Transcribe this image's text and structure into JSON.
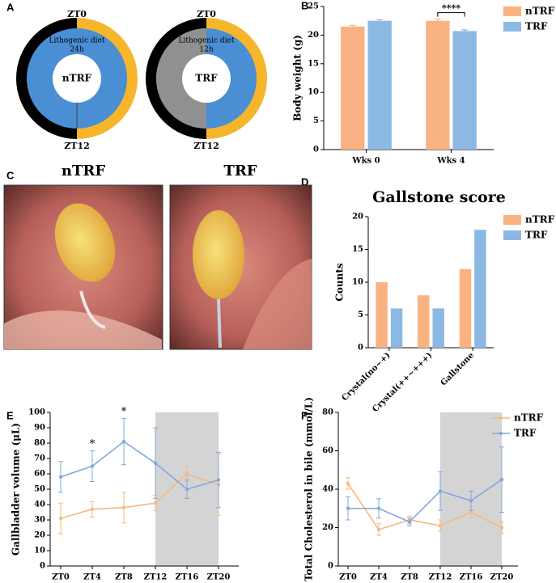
{
  "panel_letters": [
    "A",
    "B",
    "C",
    "D",
    "E",
    "F"
  ],
  "diagram": {
    "rings": [
      {
        "top": "ZT0",
        "bottom": "ZT12",
        "diet": "Lithogenic diet",
        "duration": "24h",
        "center": "nTRF"
      },
      {
        "top": "ZT0",
        "bottom": "ZT12",
        "diet": "Lithogenic diet",
        "duration": "12h",
        "center": "TRF"
      }
    ]
  },
  "photos": [
    {
      "label": "nTRF"
    },
    {
      "label": "TRF"
    }
  ],
  "chart_data": [
    {
      "type": "bar",
      "ylabel": "Body weight (g)",
      "categories": [
        "Wks 0",
        "Wks 4"
      ],
      "series": [
        {
          "name": "nTRF",
          "color": "#f9b382",
          "values": [
            21.5,
            22.5
          ],
          "errors": [
            0.2,
            0.3
          ]
        },
        {
          "name": "TRF",
          "color": "#8cb9e3",
          "values": [
            22.5,
            20.7
          ],
          "errors": [
            0.2,
            0.2
          ]
        }
      ],
      "ylim": [
        0,
        25
      ],
      "yticks": [
        0,
        5,
        10,
        15,
        20,
        25
      ],
      "annotations": [
        {
          "text": "****",
          "category": "Wks 4"
        }
      ]
    },
    {
      "type": "bar",
      "title": "Gallstone score",
      "ylabel": "Counts",
      "categories": [
        "Crystal(no~+)",
        "Crystal(++~+++)",
        "Gallstone"
      ],
      "series": [
        {
          "name": "nTRF",
          "color": "#f9b382",
          "values": [
            10,
            8,
            12
          ]
        },
        {
          "name": "TRF",
          "color": "#8cb9e3",
          "values": [
            6,
            6,
            18
          ]
        }
      ],
      "ylim": [
        0,
        20
      ],
      "yticks": [
        0,
        5,
        10,
        15,
        20
      ]
    },
    {
      "type": "line",
      "ylabel": "Gallbladder volume (μL)",
      "categories": [
        "ZT0",
        "ZT4",
        "ZT8",
        "ZT12",
        "ZT16",
        "ZT20"
      ],
      "series": [
        {
          "name": "nTRF",
          "color": "#f6b980",
          "values": [
            31,
            37,
            38,
            41,
            60,
            53
          ],
          "errors": [
            10,
            5,
            10,
            5,
            5,
            20
          ]
        },
        {
          "name": "TRF",
          "color": "#7fa9de",
          "values": [
            58,
            65,
            81,
            67,
            50,
            56
          ],
          "errors": [
            10,
            10,
            15,
            23,
            6,
            18
          ]
        }
      ],
      "ylim": [
        0,
        100
      ],
      "yticks": [
        0,
        10,
        20,
        30,
        40,
        50,
        60,
        70,
        80,
        90,
        100
      ],
      "shaded": {
        "from": "ZT12",
        "to": "ZT20"
      },
      "annotations": [
        {
          "text": "*",
          "category": "ZT4"
        },
        {
          "text": "*",
          "category": "ZT8"
        }
      ],
      "legend": false
    },
    {
      "type": "line",
      "ylabel": "Total Cholesterol in bile (mmol/L)",
      "categories": [
        "ZT0",
        "ZT4",
        "ZT8",
        "ZT12",
        "ZT16",
        "ZT20"
      ],
      "series": [
        {
          "name": "nTRF",
          "color": "#f6b980",
          "values": [
            43,
            19,
            24,
            21,
            28,
            20
          ],
          "errors": [
            3,
            3,
            2,
            3,
            3,
            3
          ]
        },
        {
          "name": "TRF",
          "color": "#7fa9de",
          "values": [
            30,
            30,
            23,
            39,
            34,
            45
          ],
          "errors": [
            6,
            5,
            2,
            10,
            5,
            17
          ]
        }
      ],
      "ylim": [
        0,
        80
      ],
      "yticks": [
        0,
        20,
        40,
        60,
        80
      ],
      "shaded": {
        "from": "ZT12",
        "to": "ZT20"
      }
    }
  ]
}
